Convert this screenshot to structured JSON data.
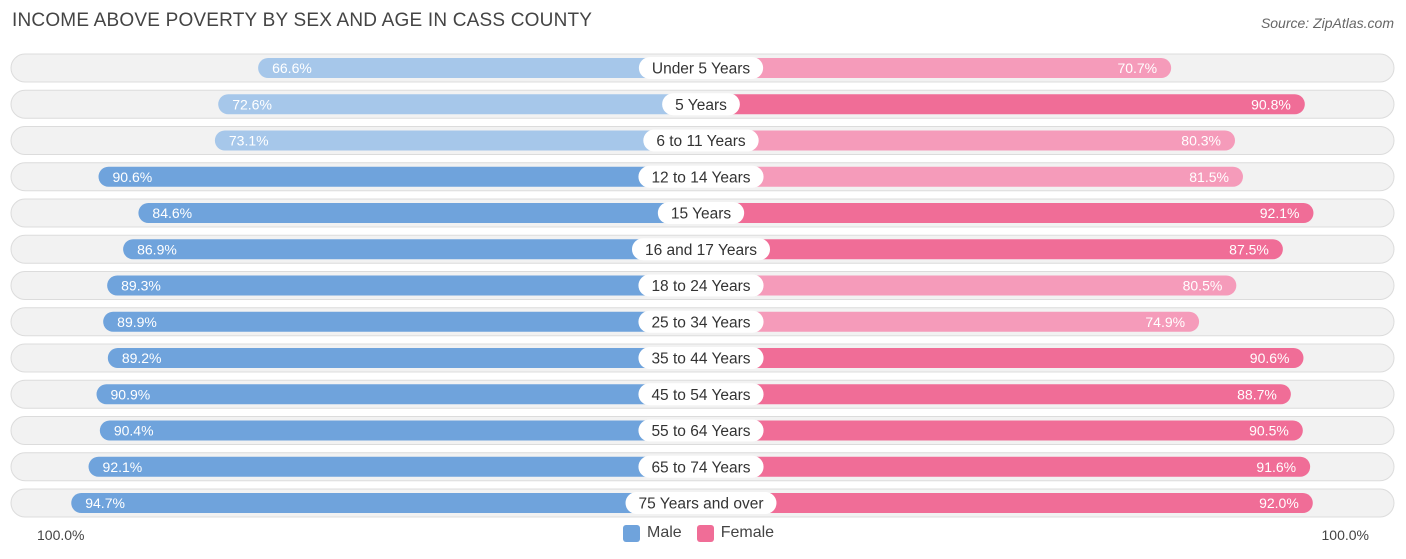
{
  "chart_data": {
    "type": "bar",
    "orientation": "horizontal-diverging",
    "title": "INCOME ABOVE POVERTY BY SEX AND AGE IN CASS COUNTY",
    "source": "Source: ZipAtlas.com",
    "categories": [
      "Under 5 Years",
      "5 Years",
      "6 to 11 Years",
      "12 to 14 Years",
      "15 Years",
      "16 and 17 Years",
      "18 to 24 Years",
      "25 to 34 Years",
      "35 to 44 Years",
      "45 to 54 Years",
      "55 to 64 Years",
      "65 to 74 Years",
      "75 Years and over"
    ],
    "series": [
      {
        "name": "Male",
        "values": [
          66.6,
          72.6,
          73.1,
          90.6,
          84.6,
          86.9,
          89.3,
          89.9,
          89.2,
          90.9,
          90.4,
          92.1,
          94.7
        ],
        "labels": [
          "66.6%",
          "72.6%",
          "73.1%",
          "90.6%",
          "84.6%",
          "86.9%",
          "89.3%",
          "89.9%",
          "89.2%",
          "90.9%",
          "90.4%",
          "92.1%",
          "94.7%"
        ]
      },
      {
        "name": "Female",
        "values": [
          70.7,
          90.8,
          80.3,
          81.5,
          92.1,
          87.5,
          80.5,
          74.9,
          90.6,
          88.7,
          90.5,
          91.6,
          92.0
        ],
        "labels": [
          "70.7%",
          "90.8%",
          "80.3%",
          "81.5%",
          "92.1%",
          "87.5%",
          "80.5%",
          "74.9%",
          "90.6%",
          "88.7%",
          "90.5%",
          "91.6%",
          "92.0%"
        ]
      }
    ],
    "xlim": [
      0,
      100
    ],
    "axis_left_label": "100.0%",
    "axis_right_label": "100.0%",
    "legend_position": "bottom-center",
    "colors": {
      "male_dark": "#6fa3dc",
      "male_light": "#a6c7ea",
      "female_dark": "#f06d97",
      "female_light": "#f59bba"
    }
  }
}
